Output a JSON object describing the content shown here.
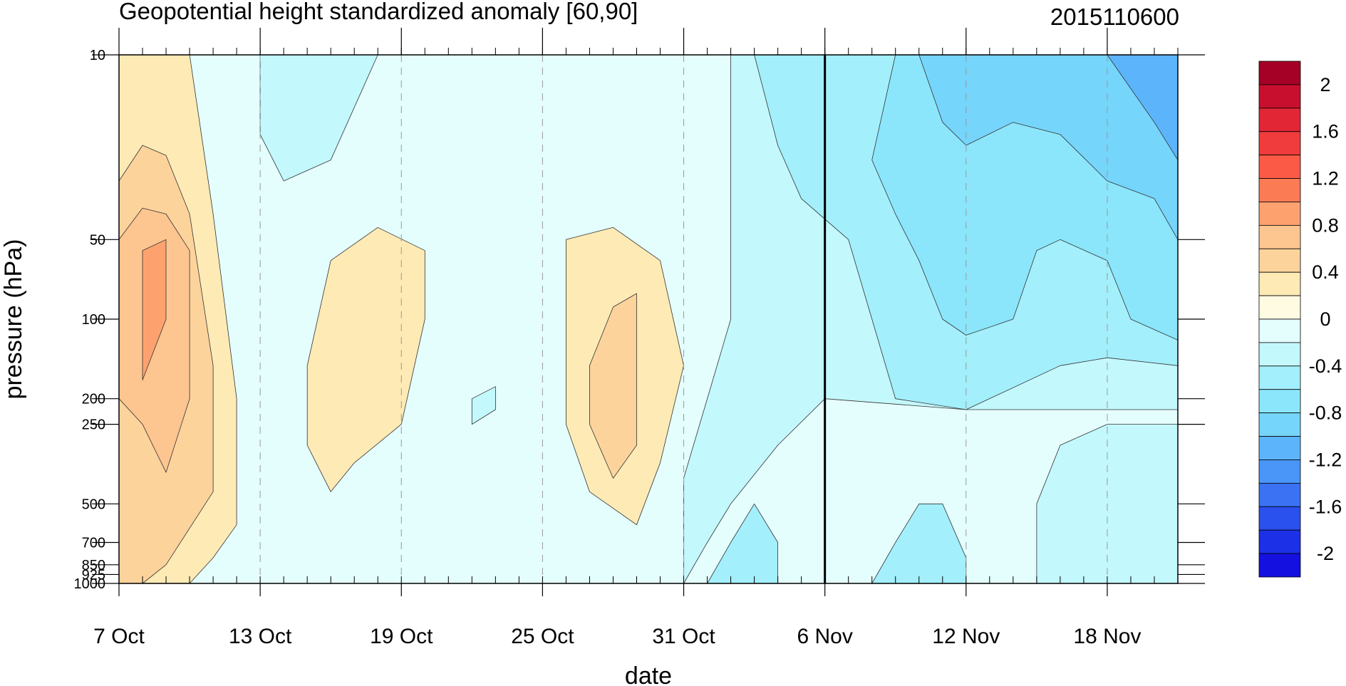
{
  "chart_data": {
    "type": "heatmap",
    "title": "Geopotential height standardized anomaly [60,90]",
    "run_label": "2015110600",
    "xlabel": "date",
    "ylabel": "pressure (hPa)",
    "x_range": [
      "2015-10-07",
      "2015-11-21"
    ],
    "x_ticks": [
      {
        "date": "2015-10-07",
        "label": "7 Oct"
      },
      {
        "date": "2015-10-13",
        "label": "13 Oct"
      },
      {
        "date": "2015-10-19",
        "label": "19 Oct"
      },
      {
        "date": "2015-10-25",
        "label": "25 Oct"
      },
      {
        "date": "2015-10-31",
        "label": "31 Oct"
      },
      {
        "date": "2015-11-06",
        "label": "6 Nov"
      },
      {
        "date": "2015-11-12",
        "label": "12 Nov"
      },
      {
        "date": "2015-11-18",
        "label": "18 Nov"
      }
    ],
    "y_scale": "log",
    "y_range": [
      1000,
      10
    ],
    "y_ticks": [
      {
        "value": 10,
        "label": "10"
      },
      {
        "value": 50,
        "label": "50"
      },
      {
        "value": 100,
        "label": "100"
      },
      {
        "value": 200,
        "label": "200"
      },
      {
        "value": 250,
        "label": "250"
      },
      {
        "value": 500,
        "label": "500"
      },
      {
        "value": 700,
        "label": "700"
      },
      {
        "value": 850,
        "label": "850"
      },
      {
        "value": 925,
        "label": "925"
      },
      {
        "value": 1000,
        "label": "1000"
      }
    ],
    "forecast_start": "2015-11-06",
    "colorbar": {
      "levels": [
        2.2,
        2.0,
        1.8,
        1.6,
        1.4,
        1.2,
        1.0,
        0.8,
        0.6,
        0.4,
        0.2,
        0.0,
        -0.2,
        -0.4,
        -0.6,
        -0.8,
        -1.0,
        -1.2,
        -1.4,
        -1.6,
        -1.8,
        -2.0,
        -2.2
      ],
      "colors": [
        "#a50026",
        "#c8102e",
        "#e32636",
        "#f03c3c",
        "#fa5a46",
        "#fb7b55",
        "#fda26f",
        "#fdc58f",
        "#fdd39c",
        "#fdeab5",
        "#fffbe3",
        "#e4fdfd",
        "#c3f8fc",
        "#a3effb",
        "#8be6fb",
        "#75d5fb",
        "#5cb5fb",
        "#4a96f8",
        "#3a72f3",
        "#2a50ee",
        "#1c30e8",
        "#1410e0"
      ],
      "tick_labels": [
        {
          "value": 2.0,
          "label": "2"
        },
        {
          "value": 1.6,
          "label": "1.6"
        },
        {
          "value": 1.2,
          "label": "1.2"
        },
        {
          "value": 0.8,
          "label": "0.8"
        },
        {
          "value": 0.4,
          "label": "0.4"
        },
        {
          "value": 0.0,
          "label": "0"
        },
        {
          "value": -0.4,
          "label": "-0.4"
        },
        {
          "value": -0.8,
          "label": "-0.8"
        },
        {
          "value": -1.2,
          "label": "-1.2"
        },
        {
          "value": -1.6,
          "label": "-1.6"
        },
        {
          "value": -2.0,
          "label": "-2"
        }
      ]
    },
    "contours": [
      {
        "name": "0.2",
        "color": "#fdeab5",
        "value": 0.2,
        "points": [
          [
            "2015-10-07",
            10
          ],
          [
            "2015-10-10",
            10
          ],
          [
            "2015-10-11",
            40
          ],
          [
            "2015-10-12",
            200
          ],
          [
            "2015-10-12",
            600
          ],
          [
            "2015-10-11",
            800
          ],
          [
            "2015-10-10",
            1000
          ],
          [
            "2015-10-07",
            1000
          ]
        ]
      },
      {
        "name": "0.4",
        "color": "#fdd39c",
        "value": 0.4,
        "points": [
          [
            "2015-10-07",
            30
          ],
          [
            "2015-10-08",
            22
          ],
          [
            "2015-10-09",
            24
          ],
          [
            "2015-10-10",
            40
          ],
          [
            "2015-10-11",
            150
          ],
          [
            "2015-10-11",
            450
          ],
          [
            "2015-10-09",
            850
          ],
          [
            "2015-10-08",
            1000
          ],
          [
            "2015-10-07",
            1000
          ]
        ]
      },
      {
        "name": "0.6",
        "color": "#fdc58f",
        "value": 0.6,
        "points": [
          [
            "2015-10-07",
            50
          ],
          [
            "2015-10-08",
            38
          ],
          [
            "2015-10-09",
            40
          ],
          [
            "2015-10-10",
            55
          ],
          [
            "2015-10-10",
            200
          ],
          [
            "2015-10-09",
            380
          ],
          [
            "2015-10-08",
            250
          ],
          [
            "2015-10-07",
            200
          ]
        ]
      },
      {
        "name": "0.8",
        "color": "#fda26f",
        "value": 0.8,
        "points": [
          [
            "2015-10-08",
            55
          ],
          [
            "2015-10-09",
            50
          ],
          [
            "2015-10-09",
            100
          ],
          [
            "2015-10-08",
            170
          ],
          [
            "2015-10-08",
            100
          ]
        ]
      },
      {
        "name": "0.2",
        "color": "#fdeab5",
        "value": 0.2,
        "points": [
          [
            "2015-10-16",
            60
          ],
          [
            "2015-10-18",
            45
          ],
          [
            "2015-10-20",
            55
          ],
          [
            "2015-10-20",
            100
          ],
          [
            "2015-10-19",
            250
          ],
          [
            "2015-10-17",
            350
          ],
          [
            "2015-10-16",
            450
          ],
          [
            "2015-10-15",
            300
          ],
          [
            "2015-10-15",
            150
          ]
        ]
      },
      {
        "name": "0.2",
        "color": "#fdeab5",
        "value": 0.2,
        "points": [
          [
            "2015-10-26",
            50
          ],
          [
            "2015-10-28",
            45
          ],
          [
            "2015-10-30",
            60
          ],
          [
            "2015-10-31",
            150
          ],
          [
            "2015-10-30",
            350
          ],
          [
            "2015-10-29",
            600
          ],
          [
            "2015-10-27",
            450
          ],
          [
            "2015-10-26",
            250
          ],
          [
            "2015-10-26",
            100
          ]
        ]
      },
      {
        "name": "0.4",
        "color": "#fdd39c",
        "value": 0.4,
        "points": [
          [
            "2015-10-28",
            90
          ],
          [
            "2015-10-29",
            80
          ],
          [
            "2015-10-29",
            200
          ],
          [
            "2015-10-29",
            300
          ],
          [
            "2015-10-28",
            400
          ],
          [
            "2015-10-27",
            250
          ],
          [
            "2015-10-27",
            150
          ]
        ]
      },
      {
        "name": "-0.2",
        "color": "#c3f8fc",
        "value": -0.2,
        "points": [
          [
            "2015-10-13",
            10
          ],
          [
            "2015-10-18",
            10
          ],
          [
            "2015-10-16",
            25
          ],
          [
            "2015-10-14",
            30
          ],
          [
            "2015-10-13",
            20
          ]
        ]
      },
      {
        "name": "-0.2",
        "color": "#c3f8fc",
        "value": -0.2,
        "points": [
          [
            "2015-11-02",
            10
          ],
          [
            "2015-11-21",
            10
          ],
          [
            "2015-11-21",
            1000
          ],
          [
            "2015-11-15",
            1000
          ],
          [
            "2015-11-15",
            500
          ],
          [
            "2015-11-16",
            300
          ],
          [
            "2015-11-18",
            250
          ],
          [
            "2015-11-21",
            250
          ],
          [
            "2015-11-21",
            220
          ],
          [
            "2015-11-12",
            220
          ],
          [
            "2015-11-06",
            200
          ],
          [
            "2015-11-04",
            300
          ],
          [
            "2015-11-02",
            500
          ],
          [
            "2015-11-01",
            700
          ],
          [
            "2015-10-31",
            1000
          ],
          [
            "2015-10-31",
            400
          ],
          [
            "2015-11-01",
            200
          ],
          [
            "2015-11-02",
            100
          ],
          [
            "2015-11-02",
            50
          ]
        ]
      },
      {
        "name": "-0.4",
        "color": "#a3effb",
        "value": -0.4,
        "points": [
          [
            "2015-11-03",
            10
          ],
          [
            "2015-11-21",
            10
          ],
          [
            "2015-11-21",
            150
          ],
          [
            "2015-11-18",
            140
          ],
          [
            "2015-11-16",
            150
          ],
          [
            "2015-11-12",
            220
          ],
          [
            "2015-11-09",
            200
          ],
          [
            "2015-11-08",
            100
          ],
          [
            "2015-11-07",
            50
          ],
          [
            "2015-11-05",
            35
          ],
          [
            "2015-11-04",
            22
          ]
        ]
      },
      {
        "name": "-0.6",
        "color": "#8be6fb",
        "value": -0.6,
        "points": [
          [
            "2015-11-09",
            10
          ],
          [
            "2015-11-21",
            10
          ],
          [
            "2015-11-21",
            120
          ],
          [
            "2015-11-19",
            100
          ],
          [
            "2015-11-18",
            60
          ],
          [
            "2015-11-16",
            50
          ],
          [
            "2015-11-15",
            55
          ],
          [
            "2015-11-14",
            100
          ],
          [
            "2015-11-12",
            115
          ],
          [
            "2015-11-11",
            100
          ],
          [
            "2015-11-10",
            60
          ],
          [
            "2015-11-09",
            40
          ],
          [
            "2015-11-08",
            25
          ]
        ]
      },
      {
        "name": "-0.8",
        "color": "#75d5fb",
        "value": -0.8,
        "points": [
          [
            "2015-11-10",
            10
          ],
          [
            "2015-11-21",
            10
          ],
          [
            "2015-11-21",
            50
          ],
          [
            "2015-11-20",
            35
          ],
          [
            "2015-11-18",
            30
          ],
          [
            "2015-11-16",
            20
          ],
          [
            "2015-11-14",
            18
          ],
          [
            "2015-11-12",
            22
          ],
          [
            "2015-11-11",
            18
          ]
        ]
      },
      {
        "name": "-1.0",
        "color": "#5cb5fb",
        "value": -1.0,
        "points": [
          [
            "2015-11-18",
            10
          ],
          [
            "2015-11-21",
            10
          ],
          [
            "2015-11-21",
            25
          ],
          [
            "2015-11-20",
            18
          ]
        ]
      },
      {
        "name": "-0.4",
        "color": "#a3effb",
        "value": -0.4,
        "points": [
          [
            "2015-11-08",
            1000
          ],
          [
            "2015-11-09",
            700
          ],
          [
            "2015-11-10",
            500
          ],
          [
            "2015-11-11",
            500
          ],
          [
            "2015-11-12",
            800
          ],
          [
            "2015-11-12",
            1000
          ]
        ]
      },
      {
        "name": "-0.4",
        "color": "#a3effb",
        "value": -0.4,
        "points": [
          [
            "2015-11-01",
            1000
          ],
          [
            "2015-11-02",
            700
          ],
          [
            "2015-11-03",
            500
          ],
          [
            "2015-11-04",
            700
          ],
          [
            "2015-11-04",
            1000
          ]
        ]
      },
      {
        "name": "-0.2",
        "color": "#c3f8fc",
        "value": -0.2,
        "points": [
          [
            "2015-10-22",
            200
          ],
          [
            "2015-10-23",
            180
          ],
          [
            "2015-10-23",
            220
          ],
          [
            "2015-10-22",
            250
          ]
        ]
      }
    ]
  }
}
